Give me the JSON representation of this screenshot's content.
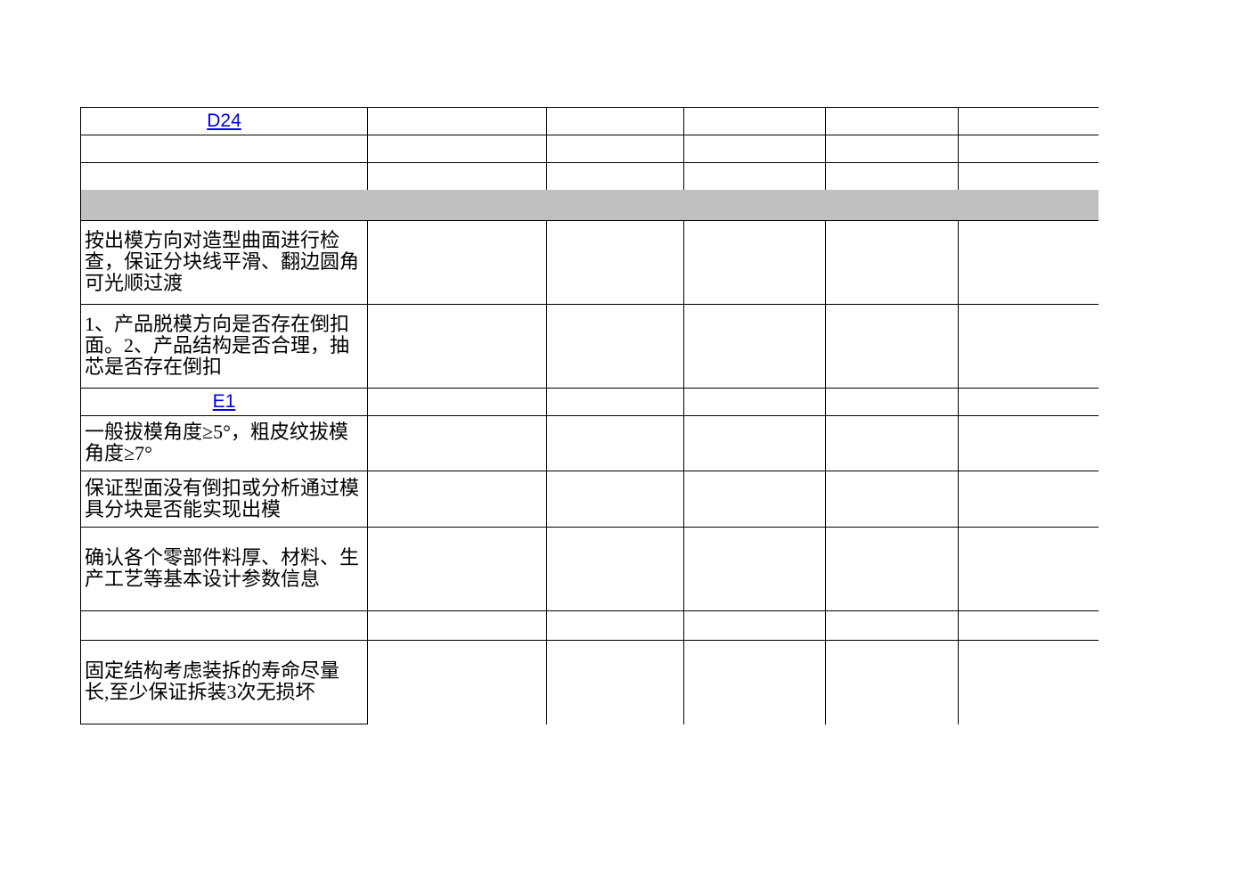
{
  "table": {
    "rows": [
      "D24",
      null,
      null,
      null,
      "按出模方向对造型曲面进行检查，保证分块线平滑、翻边圆角可光顺过渡",
      "1、产品脱模方向是否存在倒扣面。2、产品结构是否合理，抽芯是否存在倒扣",
      "E1",
      "一般拔模角度≥5°，粗皮纹拔模角度≥7°",
      "保证型面没有倒扣或分析通过模具分块是否能实现出模",
      "确认各个零部件料厚、材料、生产工艺等基本设计参数信息",
      null,
      "固定结构考虑装拆的寿命尽量长,至少保证拆装3次无损坏"
    ],
    "links": [
      0,
      6
    ]
  }
}
